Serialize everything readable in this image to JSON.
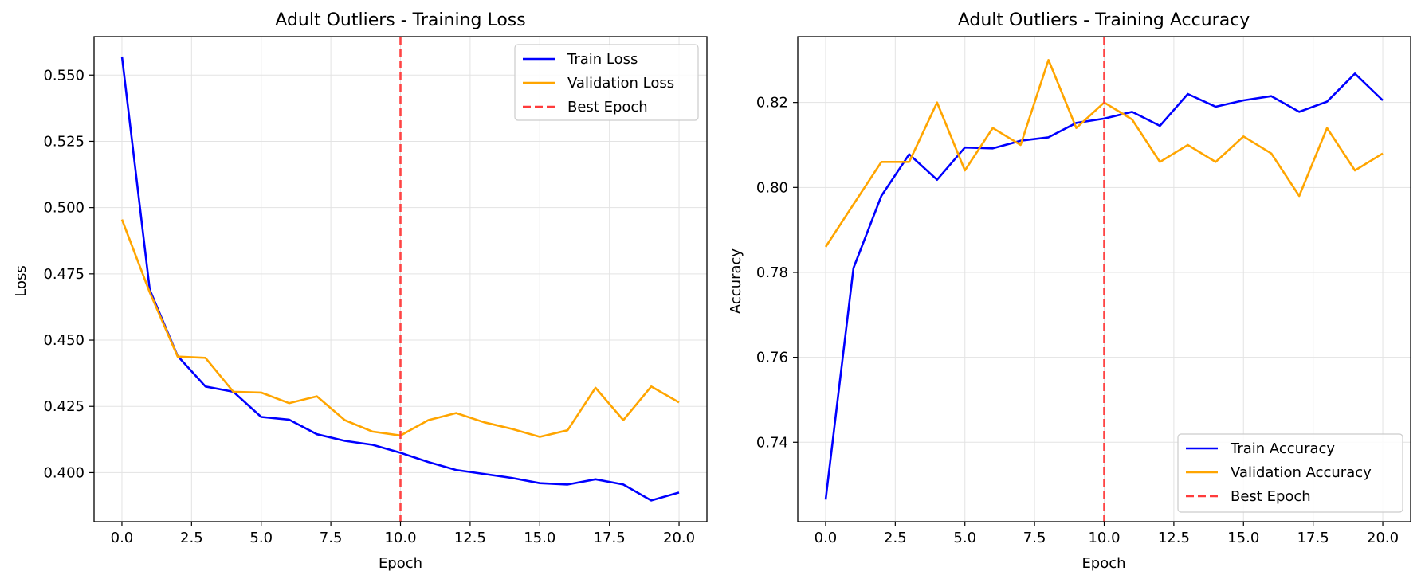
{
  "chart_data": [
    {
      "type": "line",
      "title": "Adult Outliers - Training Loss",
      "xlabel": "Epoch",
      "ylabel": "Loss",
      "xlim": [
        -1.0,
        21.0
      ],
      "ylim": [
        0.3815,
        0.5645
      ],
      "xticks": [
        0,
        2.5,
        5,
        7.5,
        10,
        12.5,
        15,
        17.5,
        20
      ],
      "xtick_labels": [
        "0.0",
        "2.5",
        "5.0",
        "7.5",
        "10.0",
        "12.5",
        "15.0",
        "17.5",
        "20.0"
      ],
      "yticks": [
        0.4,
        0.425,
        0.45,
        0.475,
        0.5,
        0.525,
        0.55
      ],
      "ytick_labels": [
        "0.400",
        "0.425",
        "0.450",
        "0.475",
        "0.500",
        "0.525",
        "0.550"
      ],
      "grid": true,
      "legend_position": "top-right",
      "x": [
        0,
        1,
        2,
        3,
        4,
        5,
        6,
        7,
        8,
        9,
        10,
        11,
        12,
        13,
        14,
        15,
        16,
        17,
        18,
        19,
        20
      ],
      "series": [
        {
          "name": "Train Loss",
          "color": "#0000ff",
          "style": "solid",
          "values": [
            0.557,
            0.469,
            0.444,
            0.4325,
            0.4305,
            0.421,
            0.42,
            0.4145,
            0.412,
            0.4105,
            0.4075,
            0.404,
            0.401,
            0.3995,
            0.398,
            0.396,
            0.3955,
            0.3975,
            0.3955,
            0.3895,
            0.3925
          ]
        },
        {
          "name": "Validation Loss",
          "color": "#ffa500",
          "style": "solid",
          "values": [
            0.4955,
            0.468,
            0.4438,
            0.4433,
            0.4305,
            0.4302,
            0.4262,
            0.4288,
            0.4198,
            0.4155,
            0.414,
            0.4198,
            0.4225,
            0.419,
            0.4165,
            0.4135,
            0.416,
            0.432,
            0.4198,
            0.4325,
            0.4265
          ]
        }
      ],
      "vlines": [
        {
          "name": "Best Epoch",
          "x": 10,
          "color": "#ff3b3b",
          "style": "dashed"
        }
      ]
    },
    {
      "type": "line",
      "title": "Adult Outliers - Training Accuracy",
      "xlabel": "Epoch",
      "ylabel": "Accuracy",
      "xlim": [
        -1.0,
        21.0
      ],
      "ylim": [
        0.7213,
        0.8355
      ],
      "xticks": [
        0,
        2.5,
        5,
        7.5,
        10,
        12.5,
        15,
        17.5,
        20
      ],
      "xtick_labels": [
        "0.0",
        "2.5",
        "5.0",
        "7.5",
        "10.0",
        "12.5",
        "15.0",
        "17.5",
        "20.0"
      ],
      "yticks": [
        0.74,
        0.76,
        0.78,
        0.8,
        0.82
      ],
      "ytick_labels": [
        "0.74",
        "0.76",
        "0.78",
        "0.80",
        "0.82"
      ],
      "grid": true,
      "legend_position": "bottom-right",
      "x": [
        0,
        1,
        2,
        3,
        4,
        5,
        6,
        7,
        8,
        9,
        10,
        11,
        12,
        13,
        14,
        15,
        16,
        17,
        18,
        19,
        20
      ],
      "series": [
        {
          "name": "Train Accuracy",
          "color": "#0000ff",
          "style": "solid",
          "values": [
            0.7265,
            0.781,
            0.798,
            0.8078,
            0.8018,
            0.8094,
            0.8092,
            0.811,
            0.8118,
            0.8152,
            0.8162,
            0.8178,
            0.8145,
            0.822,
            0.819,
            0.8205,
            0.8215,
            0.8178,
            0.8202,
            0.8268,
            0.8205
          ]
        },
        {
          "name": "Validation Accuracy",
          "color": "#ffa500",
          "style": "solid",
          "values": [
            0.786,
            0.796,
            0.806,
            0.806,
            0.82,
            0.804,
            0.814,
            0.81,
            0.83,
            0.814,
            0.82,
            0.816,
            0.806,
            0.81,
            0.806,
            0.812,
            0.808,
            0.798,
            0.814,
            0.804,
            0.808
          ]
        }
      ],
      "vlines": [
        {
          "name": "Best Epoch",
          "x": 10,
          "color": "#ff3b3b",
          "style": "dashed"
        }
      ]
    }
  ]
}
